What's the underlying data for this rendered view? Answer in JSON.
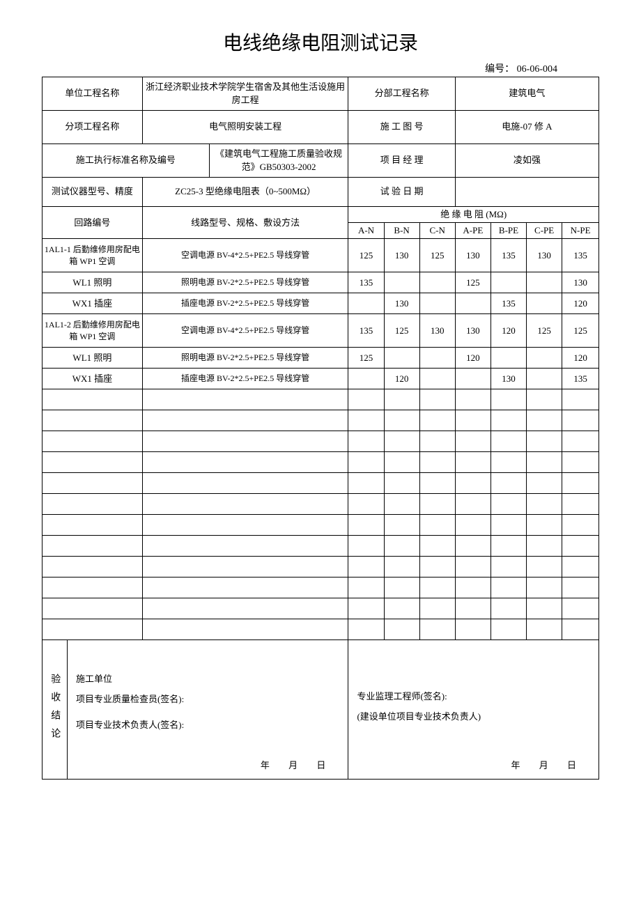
{
  "title": "电线绝缘电阻测试记录",
  "doc_number_label": "编号：",
  "doc_number": "06-06-004",
  "header": {
    "unit_project_name_label": "单位工程名称",
    "unit_project_name": "浙江经济职业技术学院学生宿舍及其他生活设施用房工程",
    "sub_project_name_label": "分部工程名称",
    "sub_project_name": "建筑电气",
    "item_project_name_label": "分项工程名称",
    "item_project_name": "电气照明安装工程",
    "drawing_no_label": "施 工 图 号",
    "drawing_no": "电施-07 修 A",
    "standard_label": "施工执行标准名称及编号",
    "standard": "《建筑电气工程施工质量验收规范》GB50303-2002",
    "manager_label": "项 目 经 理",
    "manager": "凌如强",
    "instrument_label": "测试仪器型号、精度",
    "instrument": "ZC25-3 型绝缘电阻表（0~500MΩ）",
    "test_date_label": "试 验 日 期",
    "test_date": ""
  },
  "table": {
    "circuit_no_label": "回路编号",
    "line_spec_label": "线路型号、规格、敷设方法",
    "resistance_header": "绝 缘 电 阻 (MΩ)",
    "columns": [
      "A-N",
      "B-N",
      "C-N",
      "A-PE",
      "B-PE",
      "C-PE",
      "N-PE"
    ],
    "rows": [
      {
        "circuit": "1AL1-1 后勤维修用房配电箱 WP1 空调",
        "spec": "空调电源 BV-4*2.5+PE2.5 导线穿管",
        "vals": [
          "125",
          "130",
          "125",
          "130",
          "135",
          "130",
          "135"
        ],
        "tall": true
      },
      {
        "circuit": "WL1 照明",
        "spec": "照明电源 BV-2*2.5+PE2.5 导线穿管",
        "vals": [
          "135",
          "",
          "",
          "125",
          "",
          "",
          "130"
        ],
        "tall": false
      },
      {
        "circuit": "WX1 插座",
        "spec": "插座电源 BV-2*2.5+PE2.5 导线穿管",
        "vals": [
          "",
          "130",
          "",
          "",
          "135",
          "",
          "120"
        ],
        "tall": false
      },
      {
        "circuit": "1AL1-2 后勤维修用房配电箱 WP1 空调",
        "spec": "空调电源 BV-4*2.5+PE2.5 导线穿管",
        "vals": [
          "135",
          "125",
          "130",
          "130",
          "120",
          "125",
          "125"
        ],
        "tall": true
      },
      {
        "circuit": "WL1 照明",
        "spec": "照明电源 BV-2*2.5+PE2.5 导线穿管",
        "vals": [
          "125",
          "",
          "",
          "120",
          "",
          "",
          "120"
        ],
        "tall": false
      },
      {
        "circuit": "WX1 插座",
        "spec": "插座电源 BV-2*2.5+PE2.5 导线穿管",
        "vals": [
          "",
          "120",
          "",
          "",
          "130",
          "",
          "135"
        ],
        "tall": false
      }
    ],
    "empty_rows": 12
  },
  "footer": {
    "accept_label": "验收结论",
    "left_line1": "施工单位",
    "left_line2": "项目专业质量检查员(签名):",
    "left_line3": "项目专业技术负责人(签名):",
    "right_line1": "专业监理工程师(签名):",
    "right_line2": "(建设单位项目专业技术负责人)",
    "date_text": "年 月 日"
  }
}
